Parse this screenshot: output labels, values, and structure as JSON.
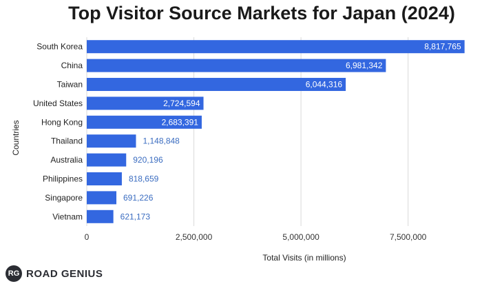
{
  "chart_data": {
    "type": "bar",
    "orientation": "horizontal",
    "title": "Top Visitor Source Markets for Japan (2024)",
    "xlabel": "Total Visits (in millions)",
    "ylabel": "Countries",
    "categories": [
      "South Korea",
      "China",
      "Taiwan",
      "United States",
      "Hong Kong",
      "Thailand",
      "Australia",
      "Philippines",
      "Singapore",
      "Vietnam"
    ],
    "values": [
      8817765,
      6981342,
      6044316,
      2724594,
      2683391,
      1148848,
      920196,
      818659,
      691226,
      621173
    ],
    "value_labels": [
      "8,817,765",
      "6,981,342",
      "6,044,316",
      "2,724,594",
      "2,683,391",
      "1,148,848",
      "920,196",
      "818,659",
      "691,226",
      "621,173"
    ],
    "xlim": [
      0,
      9000000
    ],
    "xticks": [
      0,
      2500000,
      5000000,
      7500000
    ],
    "xtick_labels": [
      "0",
      "2,500,000",
      "5,000,000",
      "7,500,000"
    ],
    "grid": true,
    "bar_color": "#3367e0",
    "inside_label_color": "#ffffff",
    "outside_label_color": "#3a6cc0"
  },
  "brand": {
    "mark": "RG",
    "name": "ROAD GENIUS"
  }
}
